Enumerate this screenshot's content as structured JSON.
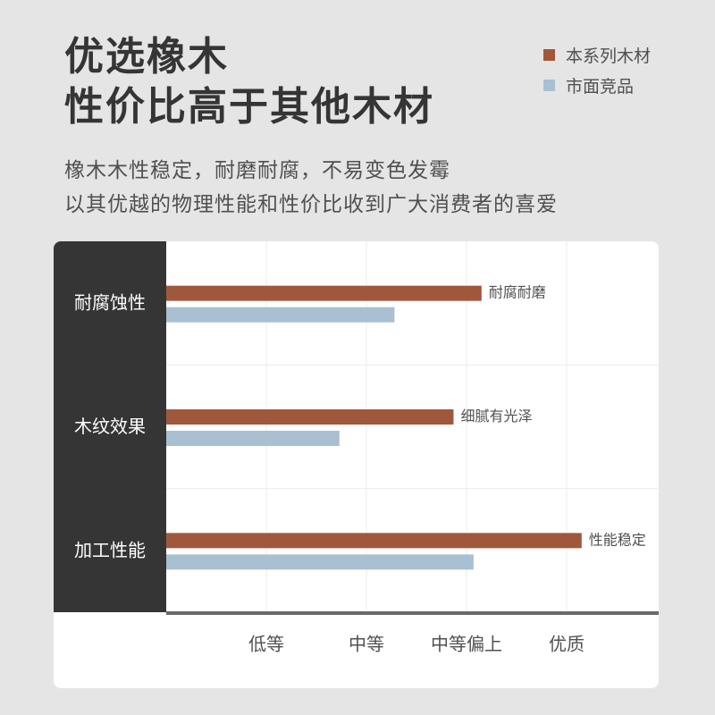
{
  "header": {
    "title_lines": [
      "优选橡木",
      "性价比高于其他木材"
    ],
    "subtitle_lines": [
      "橡木木性稳定，耐磨耐腐，不易变色发霉",
      "以其优越的物理性能和性价比收到广大消费者的喜爱"
    ]
  },
  "colors": {
    "series_1": "#a0583c",
    "series_2": "#a9bfd2",
    "category_panel": "#353535"
  },
  "chart_data": {
    "type": "bar",
    "orientation": "horizontal",
    "categories": [
      "耐腐蚀性",
      "木纹效果",
      "加工性能"
    ],
    "series": [
      {
        "name": "本系列木材",
        "values": [
          3.15,
          2.87,
          4.15
        ]
      },
      {
        "name": "市面竞品",
        "values": [
          2.28,
          1.73,
          3.07
        ]
      }
    ],
    "bar_labels": [
      "耐腐耐磨",
      "细腻有光泽",
      "性能稳定"
    ],
    "x_tick_labels": [
      "低等",
      "中等",
      "中等偏上",
      "优质"
    ],
    "x_tick_values": [
      1,
      2,
      3,
      4
    ],
    "xlim": [
      0,
      5
    ],
    "legend_position": "top-right",
    "grid": true
  }
}
